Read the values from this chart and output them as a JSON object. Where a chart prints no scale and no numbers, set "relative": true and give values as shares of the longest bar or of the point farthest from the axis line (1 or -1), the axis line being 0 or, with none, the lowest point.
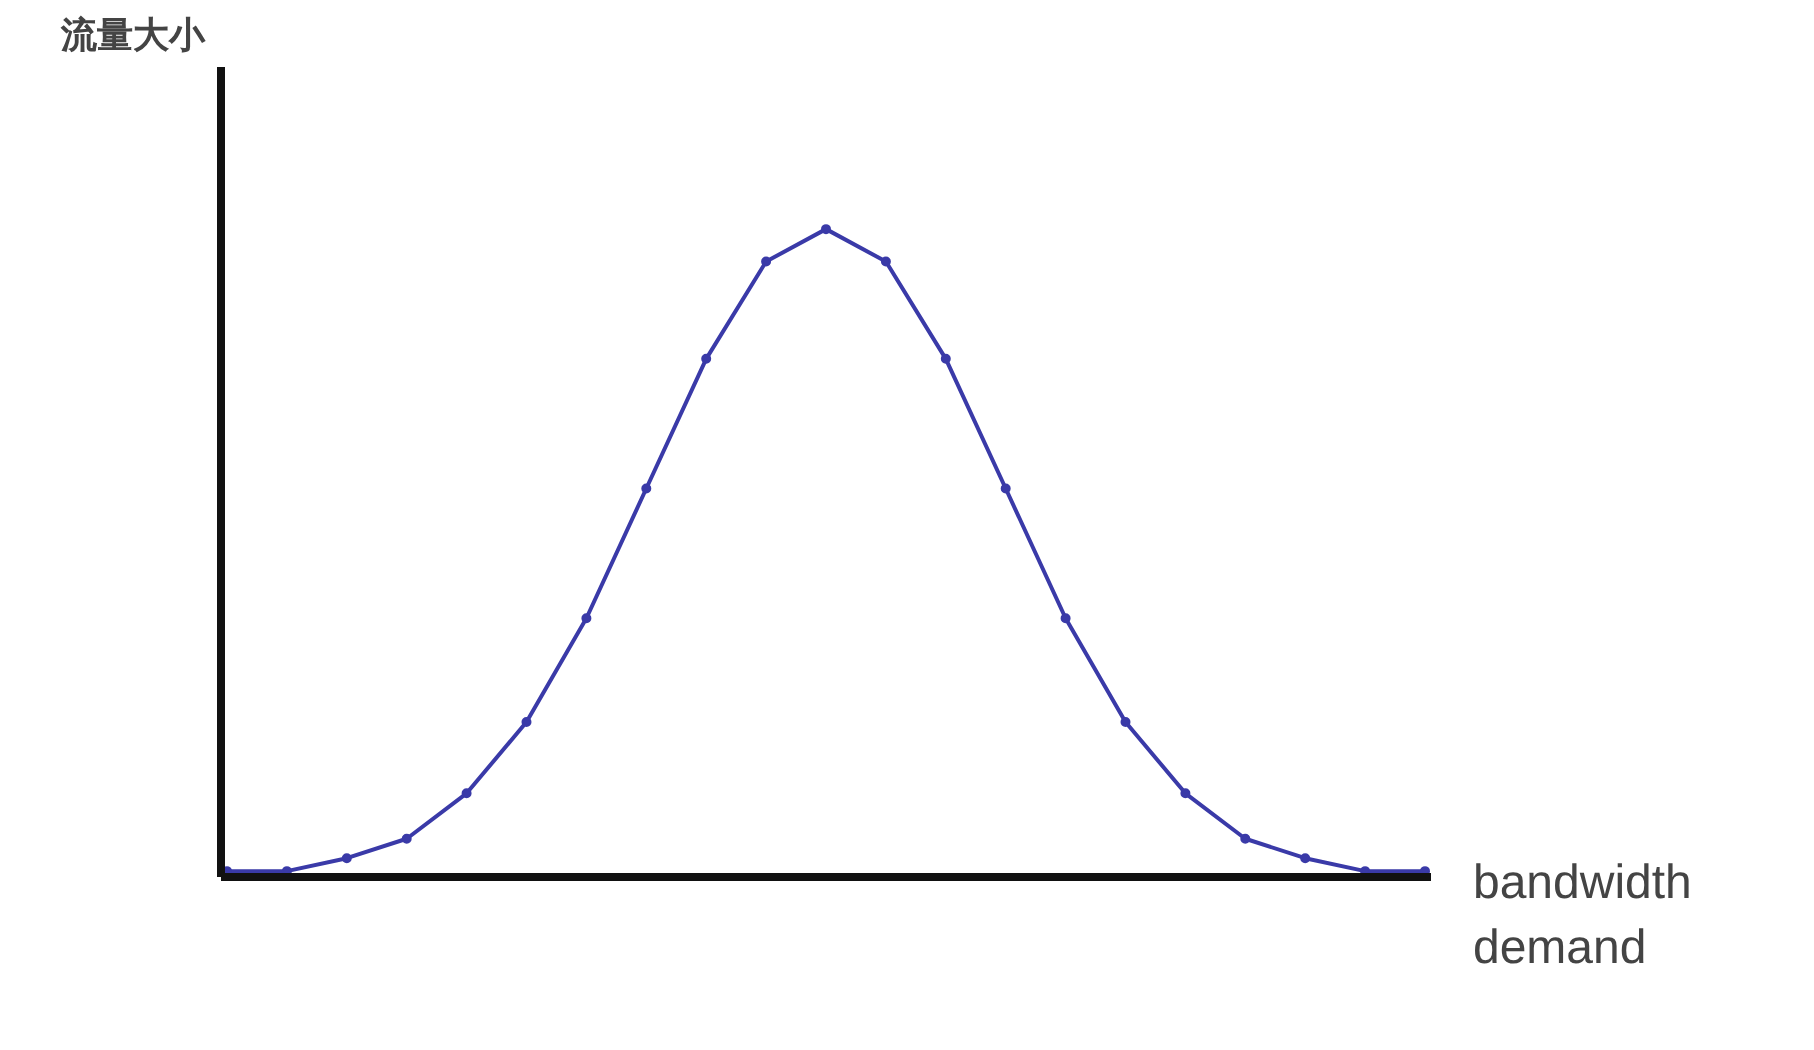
{
  "chart_data": {
    "type": "line",
    "relative": true,
    "ylabel": "流量大小",
    "xlabel": "bandwidth demand",
    "categories": [
      null,
      null,
      null,
      null,
      null,
      null,
      null,
      null,
      null,
      null,
      null,
      null,
      null,
      null,
      null,
      null,
      null,
      null,
      null,
      null,
      null
    ],
    "series": [
      {
        "color": "#3a3aa8",
        "values": [
          0.01,
          0.01,
          0.03,
          0.06,
          0.13,
          0.24,
          0.4,
          0.6,
          0.8,
          0.95,
          1.0,
          0.95,
          0.8,
          0.6,
          0.4,
          0.24,
          0.13,
          0.06,
          0.03,
          0.01,
          0.01
        ]
      }
    ],
    "marker": "circle",
    "grid": false
  }
}
